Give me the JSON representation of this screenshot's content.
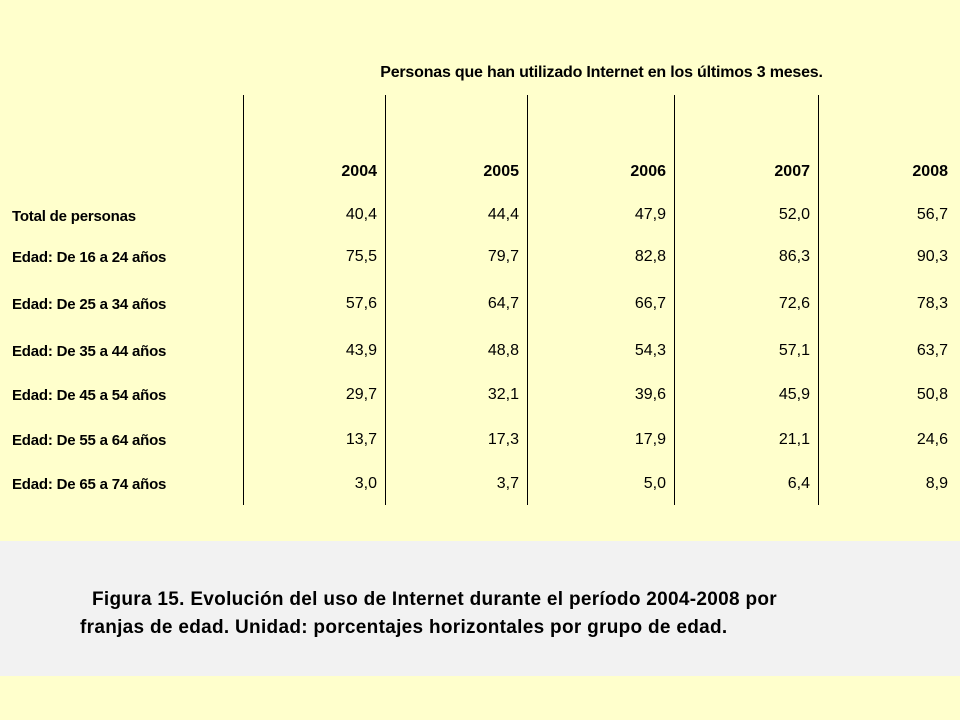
{
  "table": {
    "title": "Personas que han utilizado Internet en los últimos 3 meses.",
    "years": [
      "2004",
      "2005",
      "2006",
      "2007",
      "2008"
    ],
    "rows": [
      {
        "label": "Total de personas",
        "values": [
          "40,4",
          "44,4",
          "47,9",
          "52,0",
          "56,7"
        ]
      },
      {
        "label": "Edad: De 16 a 24 años",
        "values": [
          "75,5",
          "79,7",
          "82,8",
          "86,3",
          "90,3"
        ]
      },
      {
        "label": "Edad: De 25 a 34 años",
        "values": [
          "57,6",
          "64,7",
          "66,7",
          "72,6",
          "78,3"
        ]
      },
      {
        "label": "Edad: De 35 a 44 años",
        "values": [
          "43,9",
          "48,8",
          "54,3",
          "57,1",
          "63,7"
        ]
      },
      {
        "label": "Edad: De 45 a 54 años",
        "values": [
          "29,7",
          "32,1",
          "39,6",
          "45,9",
          "50,8"
        ]
      },
      {
        "label": "Edad: De 55 a 64 años",
        "values": [
          "13,7",
          "17,3",
          "17,9",
          "21,1",
          "24,6"
        ]
      },
      {
        "label": "Edad: De 65 a 74 años",
        "values": [
          "3,0",
          "3,7",
          "5,0",
          "6,4",
          "8,9"
        ]
      }
    ]
  },
  "caption": {
    "line1": "Figura 15. Evolución del uso de Internet durante el período 2004-2008 por",
    "line2": "franjas de edad. Unidad: porcentajes horizontales por grupo de edad."
  }
}
